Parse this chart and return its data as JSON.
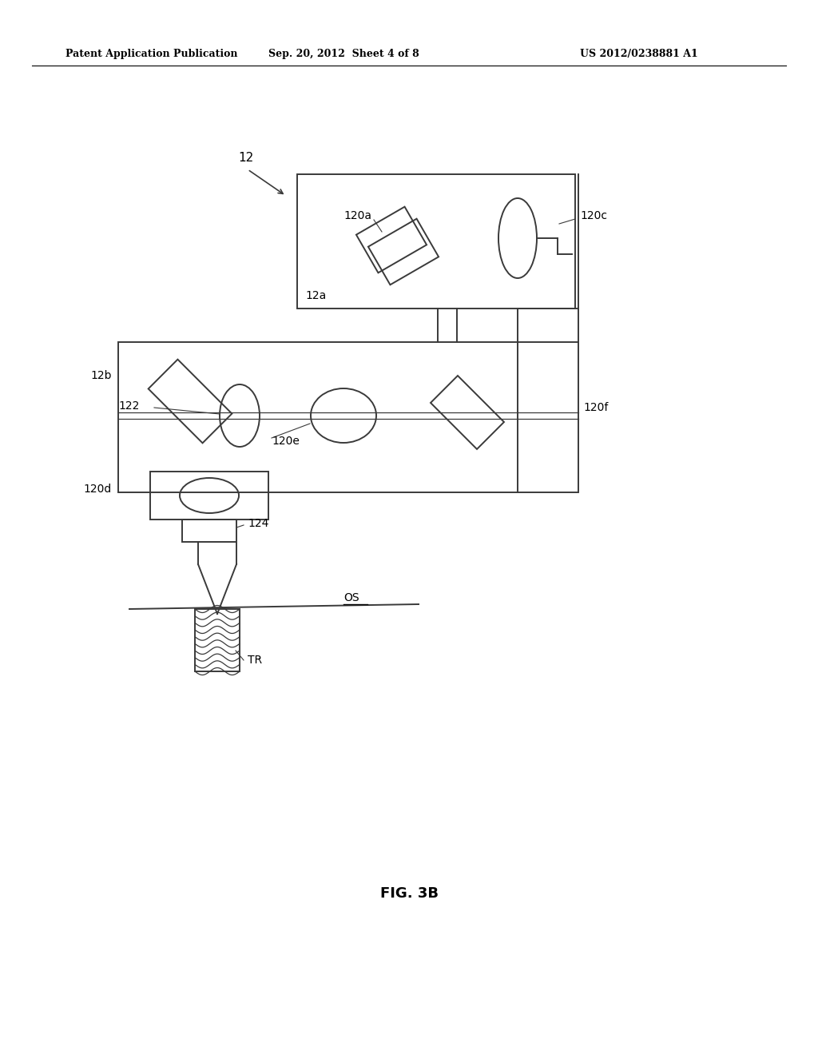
{
  "bg_color": "#ffffff",
  "line_color": "#3a3a3a",
  "header_left": "Patent Application Publication",
  "header_mid": "Sep. 20, 2012  Sheet 4 of 8",
  "header_right": "US 2012/0238881 A1",
  "figure_label": "FIG. 3B"
}
